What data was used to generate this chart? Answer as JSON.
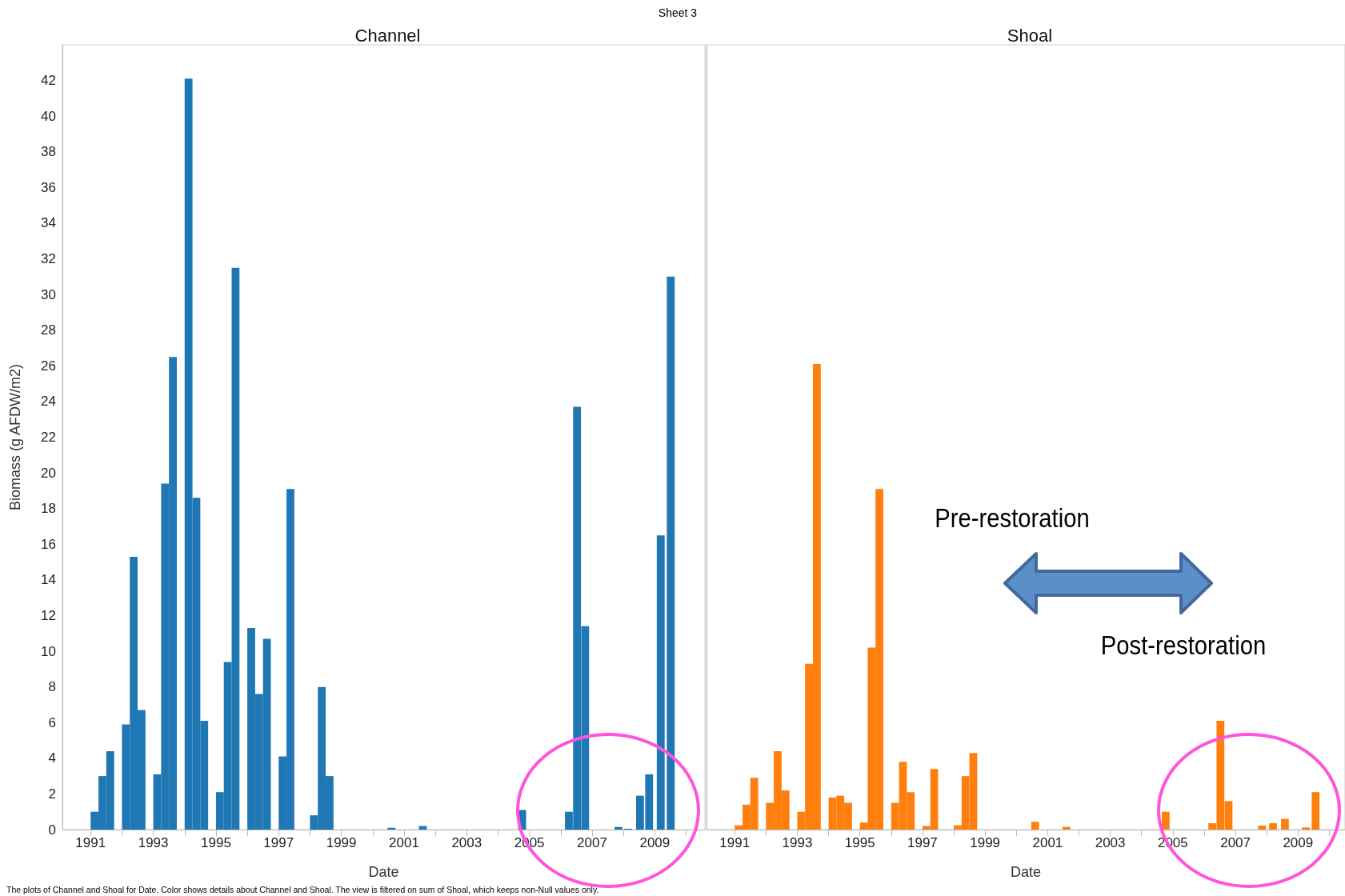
{
  "chart_data": [
    {
      "type": "bar",
      "title": "Channel",
      "xlabel": "Date",
      "ylabel": "Biomass (g AFDW/m2)",
      "color": "#1f77b4",
      "x": [
        1991.125,
        1991.375,
        1991.625,
        1992.125,
        1992.375,
        1992.625,
        1993.125,
        1993.375,
        1993.625,
        1994.125,
        1994.375,
        1994.625,
        1995.125,
        1995.375,
        1995.625,
        1996.125,
        1996.375,
        1996.625,
        1997.125,
        1997.375,
        1998.125,
        1998.375,
        1998.625,
        2000.6,
        2001.6,
        2004.77,
        2006.26,
        2006.52,
        2006.78,
        2007.84,
        2008.15,
        2008.53,
        2008.82,
        2009.19,
        2009.51
      ],
      "values": [
        1.0,
        3.0,
        4.4,
        5.9,
        15.3,
        6.7,
        3.1,
        19.4,
        26.5,
        42.1,
        18.6,
        6.1,
        2.1,
        9.4,
        31.5,
        11.3,
        7.6,
        10.7,
        4.1,
        19.1,
        0.8,
        8.0,
        3.0,
        0.1,
        0.2,
        1.1,
        1.0,
        23.7,
        11.4,
        0.15,
        0.05,
        1.9,
        3.1,
        16.5,
        31.0
      ],
      "xlim": [
        1990.1,
        2010.6
      ],
      "xticks": [
        1991,
        {
          "value": 1992,
          "label": null
        },
        1993,
        {
          "value": 1994,
          "label": null
        },
        1995,
        {
          "value": 1996,
          "label": null
        },
        1997,
        {
          "value": 1998,
          "label": null
        },
        1999,
        {
          "value": 2000,
          "label": null
        },
        2001,
        {
          "value": 2002,
          "label": null
        },
        2003,
        {
          "value": 2004,
          "label": null
        },
        2005,
        {
          "value": 2006,
          "label": null
        },
        2007,
        {
          "value": 2008,
          "label": null
        },
        2009,
        {
          "value": 2010,
          "label": null
        }
      ],
      "ylim": [
        0,
        44
      ],
      "yticks": [
        0,
        2,
        4,
        6,
        8,
        10,
        12,
        14,
        16,
        18,
        20,
        22,
        24,
        26,
        28,
        30,
        32,
        34,
        36,
        38,
        40,
        42
      ],
      "annotations": [
        "Sheet 3",
        "The plots of Channel and Shoal for Date.  Color shows details about Channel and Shoal. The view is filtered on sum of Shoal, which keeps non-Null values only."
      ]
    },
    {
      "type": "bar",
      "title": "Shoal",
      "xlabel": "Date",
      "color": "#ff7f0e",
      "tick_labels": "x",
      "x": [
        1991.125,
        1991.375,
        1991.625,
        1992.125,
        1992.375,
        1992.625,
        1993.125,
        1993.375,
        1993.625,
        1994.125,
        1994.375,
        1994.625,
        1995.125,
        1995.375,
        1995.625,
        1996.125,
        1996.375,
        1996.625,
        1997.125,
        1997.375,
        1998.125,
        1998.375,
        1998.625,
        2000.6,
        2001.6,
        2004.77,
        2006.26,
        2006.52,
        2006.78,
        2007.85,
        2008.2,
        2008.58,
        2009.25,
        2009.56
      ],
      "values": [
        0.24,
        1.4,
        2.9,
        1.5,
        4.4,
        2.2,
        1.0,
        9.3,
        26.1,
        1.8,
        1.9,
        1.5,
        0.4,
        10.2,
        19.1,
        1.5,
        3.8,
        2.1,
        0.2,
        3.4,
        0.24,
        3.0,
        4.3,
        0.44,
        0.15,
        1.0,
        0.36,
        6.1,
        1.6,
        0.22,
        0.36,
        0.6,
        0.12,
        2.1
      ],
      "xlim": [
        1990.1,
        2010.5
      ],
      "xticks": [
        1991,
        {
          "value": 1992,
          "label": null
        },
        1993,
        {
          "value": 1994,
          "label": null
        },
        1995,
        {
          "value": 1996,
          "label": null
        },
        1997,
        {
          "value": 1998,
          "label": null
        },
        1999,
        {
          "value": 2000,
          "label": null
        },
        2001,
        {
          "value": 2002,
          "label": null
        },
        2003,
        {
          "value": 2004,
          "label": null
        },
        2005,
        {
          "value": 2006,
          "label": null
        },
        2007,
        {
          "value": 2008,
          "label": null
        },
        2009,
        {
          "value": 2010,
          "label": null
        }
      ],
      "ylim": [
        0,
        44
      ],
      "yticks": [
        0,
        2,
        4,
        6,
        8,
        10,
        12,
        14,
        16,
        18,
        20,
        22,
        24,
        26,
        28,
        30,
        32,
        34,
        36,
        38,
        40,
        42
      ],
      "annotations": [
        "Pre-restoration",
        "Post-restoration"
      ]
    }
  ]
}
